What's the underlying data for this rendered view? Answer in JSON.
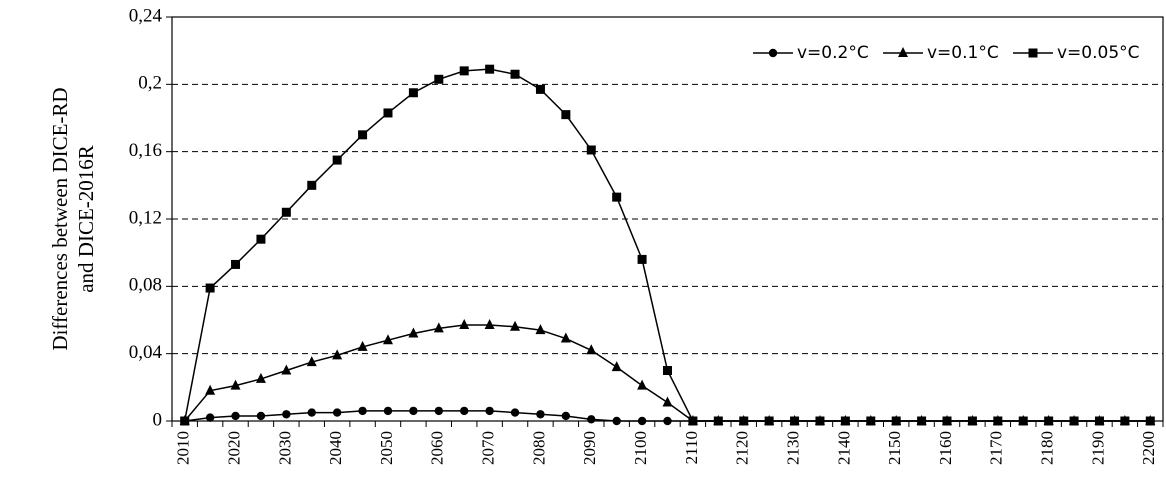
{
  "chart_data": {
    "type": "line",
    "ylabel": [
      "Differences between DICE-RD",
      "and DICE-2016R"
    ],
    "categories": [
      "2010",
      null,
      "2020",
      null,
      "2030",
      null,
      "2040",
      null,
      "2050",
      null,
      "2060",
      null,
      "2070",
      null,
      "2080",
      null,
      "2090",
      null,
      "2100",
      null,
      "2110",
      null,
      "2120",
      null,
      "2130",
      null,
      "2140",
      null,
      "2150",
      null,
      "2160",
      null,
      "2170",
      null,
      "2180",
      null,
      "2190",
      null,
      "2200"
    ],
    "series": [
      {
        "name": "v=0.2°C",
        "color": "#000000",
        "marker": "circle",
        "values": [
          0,
          0.002,
          0.003,
          0.003,
          0.004,
          0.005,
          0.005,
          0.006,
          0.006,
          0.006,
          0.006,
          0.006,
          0.006,
          0.005,
          0.004,
          0.003,
          0.001,
          0,
          0,
          0,
          0,
          0,
          0,
          0,
          0,
          0,
          0,
          0,
          0,
          0,
          0,
          0,
          0,
          0,
          0,
          0,
          0,
          0,
          0
        ]
      },
      {
        "name": "v=0.1°C",
        "color": "#000000",
        "marker": "triangle",
        "values": [
          0,
          0.018,
          0.021,
          0.025,
          0.03,
          0.035,
          0.039,
          0.044,
          0.048,
          0.052,
          0.055,
          0.057,
          0.057,
          0.056,
          0.054,
          0.049,
          0.042,
          0.032,
          0.021,
          0.011,
          0,
          0,
          0,
          0,
          0,
          0,
          0,
          0,
          0,
          0,
          0,
          0,
          0,
          0,
          0,
          0,
          0,
          0,
          0
        ]
      },
      {
        "name": "v=0.05°C",
        "color": "#000000",
        "marker": "square",
        "values": [
          0,
          0.079,
          0.093,
          0.108,
          0.124,
          0.14,
          0.155,
          0.17,
          0.183,
          0.195,
          0.203,
          0.208,
          0.209,
          0.206,
          0.197,
          0.182,
          0.161,
          0.133,
          0.096,
          0.03,
          0,
          0,
          0,
          0,
          0,
          0,
          0,
          0,
          0,
          0,
          0,
          0,
          0,
          0,
          0,
          0,
          0,
          0,
          0
        ]
      }
    ],
    "ylim": [
      0,
      0.24
    ],
    "yticks": [
      0,
      {
        "value": 0.04,
        "label": "0,04"
      },
      {
        "value": 0.08,
        "label": "0,08"
      },
      {
        "value": 0.12,
        "label": "0,12"
      },
      {
        "value": 0.16,
        "label": "0,16"
      },
      {
        "value": 0.2,
        "label": "0,2"
      },
      {
        "value": 0.24,
        "label": "0,24"
      }
    ],
    "grid": true,
    "legend": "top-right"
  }
}
